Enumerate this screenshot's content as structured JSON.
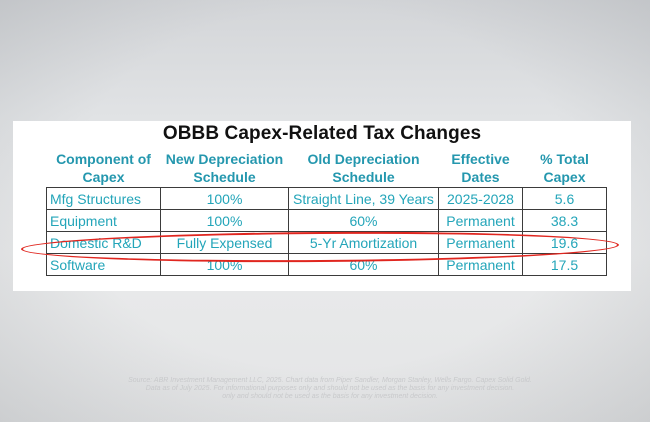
{
  "slide": {
    "title": "OBBB Capex-Related Tax Changes"
  },
  "table": {
    "headers": [
      [
        "Component of",
        "Capex"
      ],
      [
        "New Depreciation",
        "Schedule"
      ],
      [
        "Old Depreciation",
        "Schedule"
      ],
      [
        "Effective",
        "Dates"
      ],
      [
        "% Total",
        "Capex"
      ]
    ],
    "rows": [
      {
        "component": "Mfg Structures",
        "new_schedule": "100%",
        "old_schedule": "Straight Line, 39 Years",
        "effective": "2025-2028",
        "pct_total": "5.6"
      },
      {
        "component": "Equipment",
        "new_schedule": "100%",
        "old_schedule": "60%",
        "effective": "Permanent",
        "pct_total": "38.3"
      },
      {
        "component": "Domestic R&D",
        "new_schedule": "Fully Expensed",
        "old_schedule": "5-Yr Amortization",
        "effective": "Permanent",
        "pct_total": "19.6"
      },
      {
        "component": "Software",
        "new_schedule": "100%",
        "old_schedule": "60%",
        "effective": "Permanent",
        "pct_total": "17.5"
      }
    ],
    "highlighted_row": "Domestic R&D"
  },
  "source_note": {
    "line1": "Source: ABR Investment Management LLC, 2025. Chart data from Piper Sandler, Morgan Stanley, Wells Fargo. Capex Solid Gold.",
    "line2": "Data as of July 2025. For informational purposes only and should not be used as the basis for any investment decision.",
    "line3": "only and should not be used as the basis for any investment decision."
  },
  "colors": {
    "table_text": "#23a5b9",
    "header_text": "#2497ae",
    "highlight_ellipse": "#e0261f",
    "title_text": "#111111"
  }
}
